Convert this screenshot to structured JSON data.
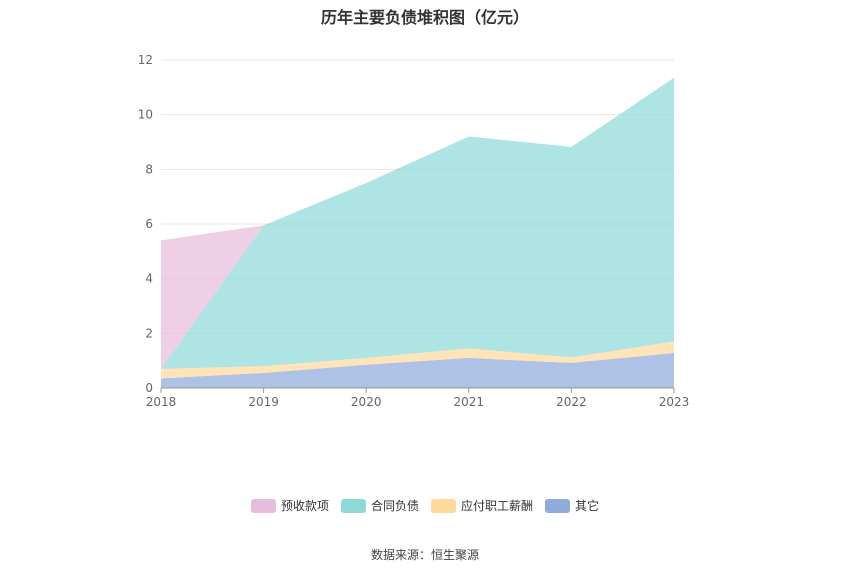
{
  "chart_data": {
    "type": "area",
    "stacked": true,
    "title": "历年主要负债堆积图（亿元）",
    "x": [
      "2018",
      "2019",
      "2020",
      "2021",
      "2022",
      "2023"
    ],
    "ylim": [
      0,
      12
    ],
    "yticks": [
      0,
      2,
      4,
      6,
      8,
      10,
      12
    ],
    "grid": true,
    "legend_position": "bottom",
    "series": [
      {
        "name": "其它",
        "color": "#8fabdc",
        "values": [
          0.35,
          0.55,
          0.85,
          1.1,
          0.92,
          1.28
        ]
      },
      {
        "name": "应付职工薪酬",
        "color": "#fdd99c",
        "values": [
          0.35,
          0.25,
          0.25,
          0.35,
          0.2,
          0.42
        ]
      },
      {
        "name": "合同负债",
        "color": "#8fd9d9",
        "values": [
          0.0,
          5.15,
          6.4,
          7.75,
          7.7,
          9.65
        ]
      },
      {
        "name": "预收款项",
        "color": "#e8bcdc",
        "values": [
          4.7,
          0.0,
          0.0,
          0.0,
          0.0,
          0.0
        ]
      }
    ],
    "legend_order": [
      "预收款项",
      "合同负债",
      "应付职工薪酬",
      "其它"
    ]
  },
  "source_text": "数据来源：恒生聚源"
}
